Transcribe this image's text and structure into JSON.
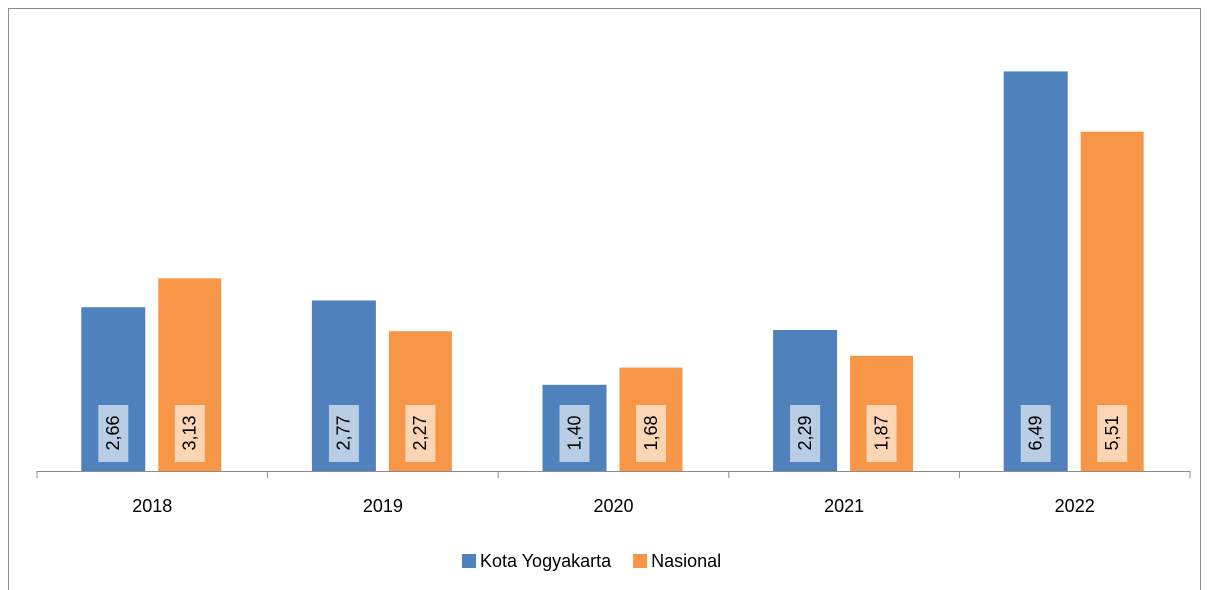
{
  "chart_data": {
    "type": "bar",
    "categories": [
      "2018",
      "2019",
      "2020",
      "2021",
      "2022"
    ],
    "series": [
      {
        "name": "Kota Yogyakarta",
        "color": "#4f81bd",
        "label_box": "#b9cde5",
        "values": [
          2.66,
          2.77,
          1.4,
          2.29,
          6.49
        ],
        "value_labels": [
          "2,66",
          "2,77",
          "1,40",
          "2,29",
          "6,49"
        ]
      },
      {
        "name": "Nasional",
        "color": "#f79646",
        "label_box": "#fcd5b5",
        "values": [
          3.13,
          2.27,
          1.68,
          1.87,
          5.51
        ],
        "value_labels": [
          "3,13",
          "2,27",
          "1,68",
          "1,87",
          "5,51"
        ]
      }
    ],
    "ylim": [
      0,
      7
    ],
    "grid": false,
    "legend": "bottom"
  }
}
